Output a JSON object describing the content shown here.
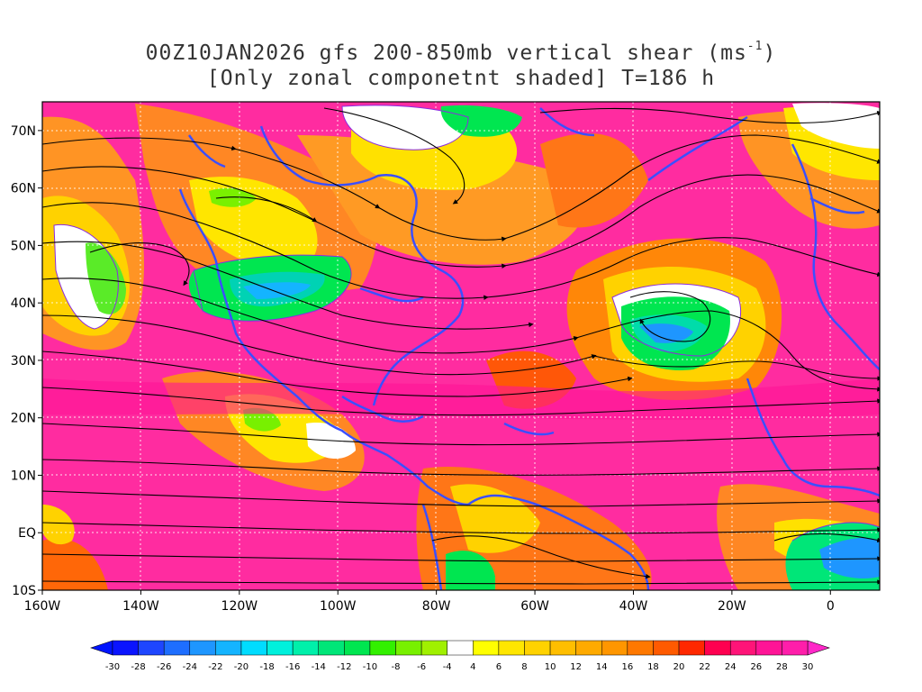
{
  "title": {
    "line1_prefix": "00Z10JAN2026 gfs 200-850mb vertical shear (ms",
    "line1_sup": "-1",
    "line1_suffix": ")",
    "line2": "[Only zonal componetnt shaded] T=186 h"
  },
  "map": {
    "lon_range": [
      -160,
      10
    ],
    "lat_range": [
      -10,
      75
    ],
    "lat_ticks": [
      {
        "value": 70,
        "label": "70N"
      },
      {
        "value": 60,
        "label": "60N"
      },
      {
        "value": 50,
        "label": "50N"
      },
      {
        "value": 40,
        "label": "40N"
      },
      {
        "value": 30,
        "label": "30N"
      },
      {
        "value": 20,
        "label": "20N"
      },
      {
        "value": 10,
        "label": "10N"
      },
      {
        "value": 0,
        "label": "EQ"
      },
      {
        "value": -10,
        "label": "10S"
      }
    ],
    "lon_ticks": [
      {
        "value": -160,
        "label": "160W"
      },
      {
        "value": -140,
        "label": "140W"
      },
      {
        "value": -120,
        "label": "120W"
      },
      {
        "value": -100,
        "label": "100W"
      },
      {
        "value": -80,
        "label": "80W"
      },
      {
        "value": -60,
        "label": "60W"
      },
      {
        "value": -40,
        "label": "40W"
      },
      {
        "value": -20,
        "label": "20W"
      },
      {
        "value": 0,
        "label": "0"
      }
    ],
    "colors": {
      "coastline": "#3b4fff",
      "streamline": "#000000",
      "contour": "#8a2be2",
      "grid": "#ffffff"
    }
  },
  "colorbar": {
    "labels": [
      "-30",
      "-28",
      "-26",
      "-24",
      "-22",
      "-20",
      "-18",
      "-16",
      "-14",
      "-12",
      "-10",
      "-8",
      "-6",
      "-4",
      "4",
      "6",
      "8",
      "10",
      "12",
      "14",
      "16",
      "18",
      "20",
      "22",
      "24",
      "26",
      "28",
      "30"
    ],
    "colors": [
      "#0a14ff",
      "#1e46ff",
      "#1e6eff",
      "#1e96ff",
      "#14b4ff",
      "#00dcff",
      "#00f0dc",
      "#00f0aa",
      "#00e678",
      "#00e650",
      "#32f000",
      "#78f000",
      "#a0f000",
      "#ffffff",
      "#ffff00",
      "#ffe600",
      "#ffd200",
      "#ffbe00",
      "#ffaa00",
      "#ff9600",
      "#ff7800",
      "#ff5a00",
      "#ff2800",
      "#ff0050",
      "#ff1478",
      "#ff1496",
      "#ff1eaa"
    ],
    "low_color": "#0014ff",
    "high_color": "#ff28c8"
  }
}
